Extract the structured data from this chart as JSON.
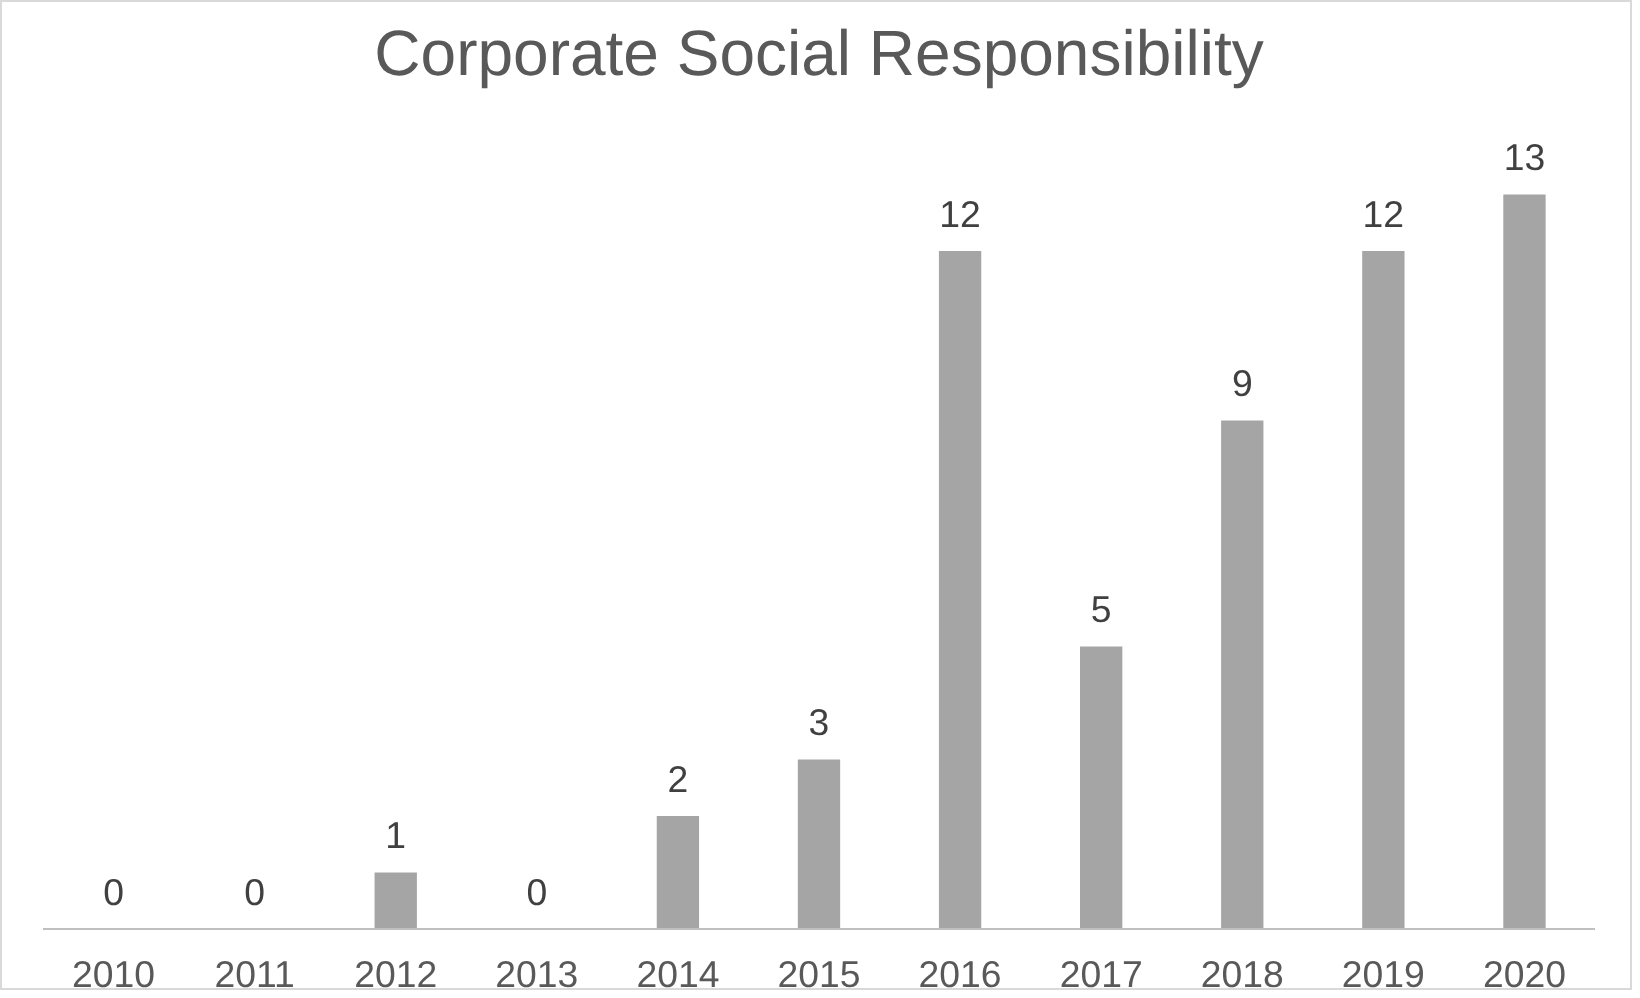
{
  "chart_data": {
    "type": "bar",
    "title": "Corporate Social Responsibility",
    "categories": [
      "2010",
      "2011",
      "2012",
      "2013",
      "2014",
      "2015",
      "2016",
      "2017",
      "2018",
      "2019",
      "2020"
    ],
    "values": [
      0,
      0,
      1,
      0,
      2,
      3,
      12,
      5,
      9,
      12,
      13
    ],
    "color": "#a5a5a5",
    "data_labels": true,
    "grid": false
  }
}
